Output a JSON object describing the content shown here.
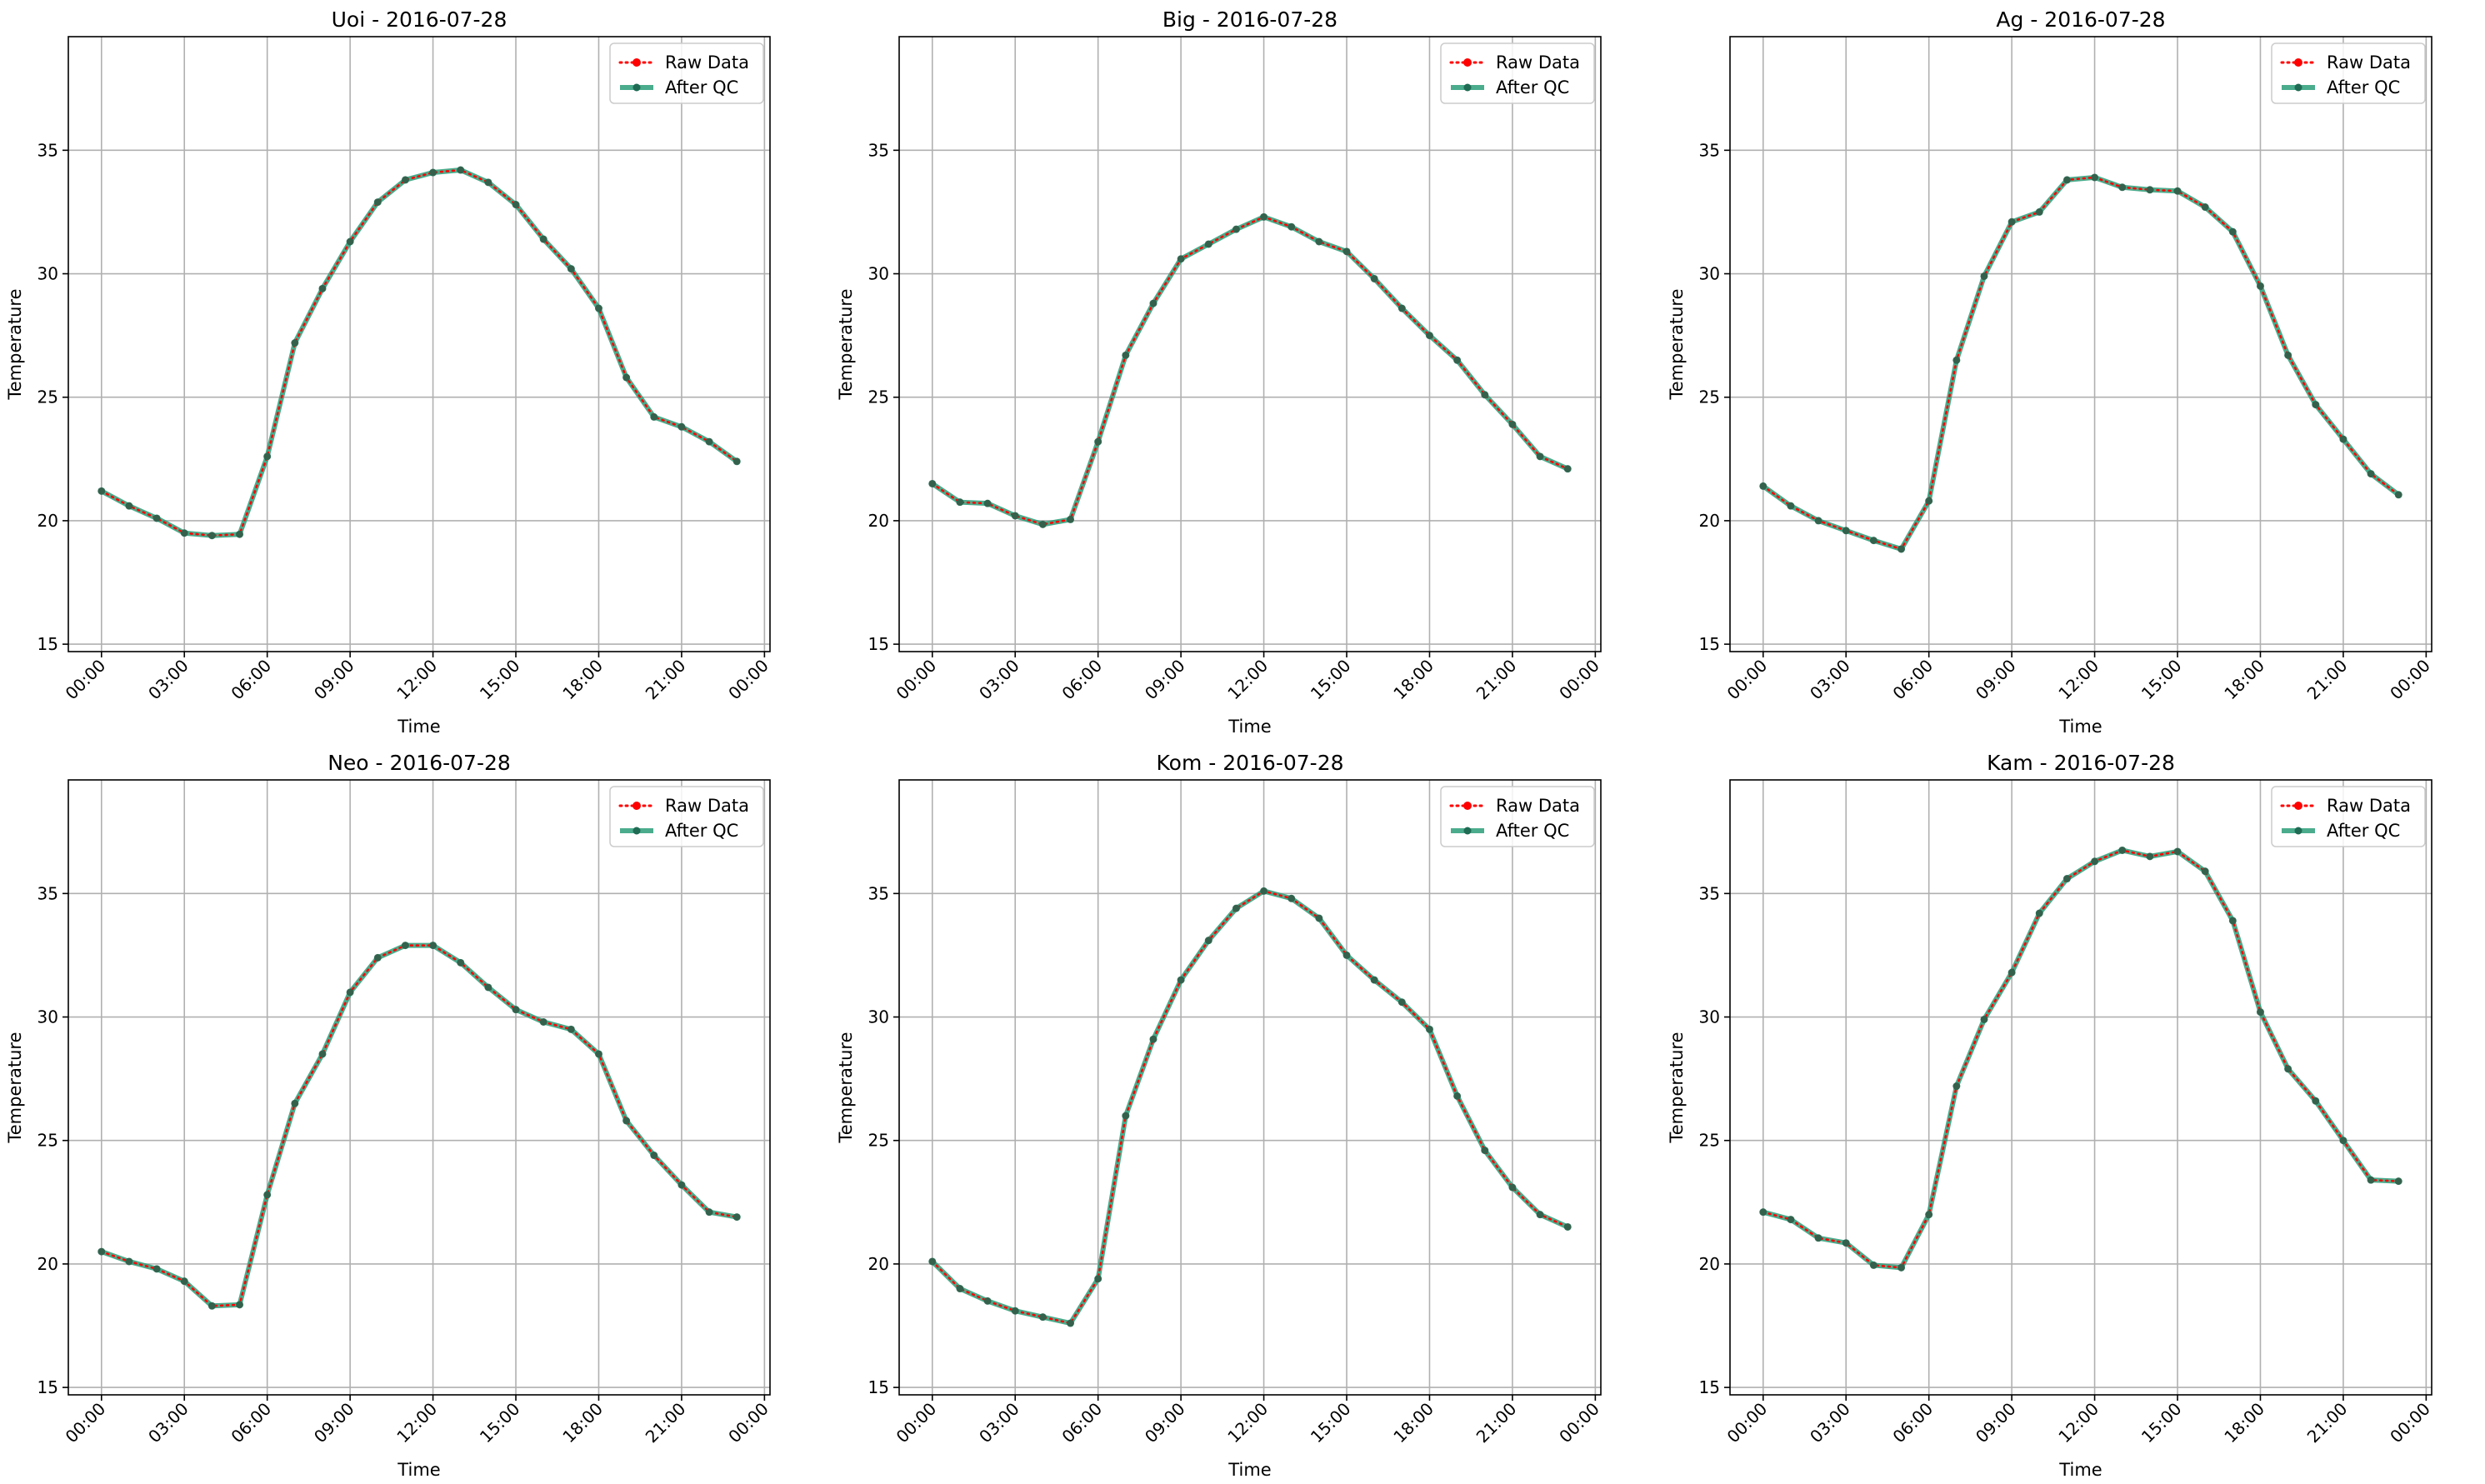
{
  "chart_data": [
    {
      "type": "line",
      "title": "Uoi - 2016-07-28",
      "xlabel": "Time",
      "ylabel": "Temperature",
      "ylim": [
        14.7,
        39.6
      ],
      "yticks": [
        "15",
        "20",
        "25",
        "30",
        "35"
      ],
      "xticks": [
        "00:00",
        "03:00",
        "06:00",
        "09:00",
        "12:00",
        "15:00",
        "18:00",
        "21:00",
        "00:00"
      ],
      "grid": true,
      "legend": "top-right",
      "series": [
        {
          "name": "Raw Data",
          "color": "#ff0000",
          "values": [
            21.2,
            20.6,
            20.1,
            19.5,
            19.4,
            19.45,
            22.6,
            27.2,
            29.4,
            31.3,
            32.9,
            33.8,
            34.1,
            34.2,
            33.7,
            32.8,
            31.4,
            30.2,
            28.6,
            25.8,
            24.2,
            23.8,
            23.2,
            22.4
          ]
        },
        {
          "name": "After QC",
          "color": "#2a9d78",
          "values": [
            21.2,
            20.6,
            20.1,
            19.5,
            19.4,
            19.45,
            22.6,
            27.2,
            29.4,
            31.3,
            32.9,
            33.8,
            34.1,
            34.2,
            33.7,
            32.8,
            31.4,
            30.2,
            28.6,
            25.8,
            24.2,
            23.8,
            23.2,
            22.4
          ]
        }
      ]
    },
    {
      "type": "line",
      "title": "Big - 2016-07-28",
      "xlabel": "Time",
      "ylabel": "Temperature",
      "ylim": [
        14.7,
        39.6
      ],
      "yticks": [
        "15",
        "20",
        "25",
        "30",
        "35"
      ],
      "xticks": [
        "00:00",
        "03:00",
        "06:00",
        "09:00",
        "12:00",
        "15:00",
        "18:00",
        "21:00",
        "00:00"
      ],
      "grid": true,
      "legend": "top-right",
      "series": [
        {
          "name": "Raw Data",
          "color": "#ff0000",
          "values": [
            21.5,
            20.75,
            20.7,
            20.2,
            19.85,
            20.05,
            23.2,
            26.7,
            28.8,
            30.6,
            31.2,
            31.8,
            32.3,
            31.9,
            31.3,
            30.9,
            29.8,
            28.6,
            27.5,
            26.5,
            25.1,
            23.9,
            22.6,
            22.1
          ]
        },
        {
          "name": "After QC",
          "color": "#2a9d78",
          "values": [
            21.5,
            20.75,
            20.7,
            20.2,
            19.85,
            20.05,
            23.2,
            26.7,
            28.8,
            30.6,
            31.2,
            31.8,
            32.3,
            31.9,
            31.3,
            30.9,
            29.8,
            28.6,
            27.5,
            26.5,
            25.1,
            23.9,
            22.6,
            22.1
          ]
        }
      ]
    },
    {
      "type": "line",
      "title": "Ag - 2016-07-28",
      "xlabel": "Time",
      "ylabel": "Temperature",
      "ylim": [
        14.7,
        39.6
      ],
      "yticks": [
        "15",
        "20",
        "25",
        "30",
        "35"
      ],
      "xticks": [
        "00:00",
        "03:00",
        "06:00",
        "09:00",
        "12:00",
        "15:00",
        "18:00",
        "21:00",
        "00:00"
      ],
      "grid": true,
      "legend": "top-right",
      "series": [
        {
          "name": "Raw Data",
          "color": "#ff0000",
          "values": [
            21.4,
            20.6,
            20.0,
            19.6,
            19.2,
            18.85,
            20.8,
            26.5,
            29.9,
            32.1,
            32.5,
            33.8,
            33.9,
            33.5,
            33.4,
            33.35,
            32.7,
            31.7,
            29.5,
            26.7,
            24.7,
            23.3,
            21.9,
            21.05
          ]
        },
        {
          "name": "After QC",
          "color": "#2a9d78",
          "values": [
            21.4,
            20.6,
            20.0,
            19.6,
            19.2,
            18.85,
            20.8,
            26.5,
            29.9,
            32.1,
            32.5,
            33.8,
            33.9,
            33.5,
            33.4,
            33.35,
            32.7,
            31.7,
            29.5,
            26.7,
            24.7,
            23.3,
            21.9,
            21.05
          ]
        }
      ]
    },
    {
      "type": "line",
      "title": "Neo - 2016-07-28",
      "xlabel": "Time",
      "ylabel": "Temperature",
      "ylim": [
        14.7,
        39.6
      ],
      "yticks": [
        "15",
        "20",
        "25",
        "30",
        "35"
      ],
      "xticks": [
        "00:00",
        "03:00",
        "06:00",
        "09:00",
        "12:00",
        "15:00",
        "18:00",
        "21:00",
        "00:00"
      ],
      "grid": true,
      "legend": "top-right",
      "series": [
        {
          "name": "Raw Data",
          "color": "#ff0000",
          "values": [
            20.5,
            20.1,
            19.8,
            19.3,
            18.3,
            18.35,
            22.8,
            26.5,
            28.5,
            31.0,
            32.4,
            32.9,
            32.9,
            32.2,
            31.2,
            30.3,
            29.8,
            29.5,
            28.5,
            25.8,
            24.4,
            23.2,
            22.1,
            21.9
          ]
        },
        {
          "name": "After QC",
          "color": "#2a9d78",
          "values": [
            20.5,
            20.1,
            19.8,
            19.3,
            18.3,
            18.35,
            22.8,
            26.5,
            28.5,
            31.0,
            32.4,
            32.9,
            32.9,
            32.2,
            31.2,
            30.3,
            29.8,
            29.5,
            28.5,
            25.8,
            24.4,
            23.2,
            22.1,
            21.9
          ]
        }
      ]
    },
    {
      "type": "line",
      "title": "Kom - 2016-07-28",
      "xlabel": "Time",
      "ylabel": "Temperature",
      "ylim": [
        14.7,
        39.6
      ],
      "yticks": [
        "15",
        "20",
        "25",
        "30",
        "35"
      ],
      "xticks": [
        "00:00",
        "03:00",
        "06:00",
        "09:00",
        "12:00",
        "15:00",
        "18:00",
        "21:00",
        "00:00"
      ],
      "grid": true,
      "legend": "top-right",
      "series": [
        {
          "name": "Raw Data",
          "color": "#ff0000",
          "values": [
            20.1,
            19.0,
            18.5,
            18.1,
            17.85,
            17.6,
            19.4,
            26.0,
            29.1,
            31.5,
            33.1,
            34.4,
            35.1,
            34.8,
            34.0,
            32.5,
            31.5,
            30.6,
            29.5,
            26.8,
            24.6,
            23.1,
            22.0,
            21.5
          ]
        },
        {
          "name": "After QC",
          "color": "#2a9d78",
          "values": [
            20.1,
            19.0,
            18.5,
            18.1,
            17.85,
            17.6,
            19.4,
            26.0,
            29.1,
            31.5,
            33.1,
            34.4,
            35.1,
            34.8,
            34.0,
            32.5,
            31.5,
            30.6,
            29.5,
            26.8,
            24.6,
            23.1,
            22.0,
            21.5
          ]
        }
      ]
    },
    {
      "type": "line",
      "title": "Kam - 2016-07-28",
      "xlabel": "Time",
      "ylabel": "Temperature",
      "ylim": [
        14.7,
        39.6
      ],
      "yticks": [
        "15",
        "20",
        "25",
        "30",
        "35"
      ],
      "xticks": [
        "00:00",
        "03:00",
        "06:00",
        "09:00",
        "12:00",
        "15:00",
        "18:00",
        "21:00",
        "00:00"
      ],
      "grid": true,
      "legend": "top-right",
      "series": [
        {
          "name": "Raw Data",
          "color": "#ff0000",
          "values": [
            22.1,
            21.8,
            21.05,
            20.85,
            19.95,
            19.85,
            22.0,
            27.2,
            29.9,
            31.8,
            34.2,
            35.6,
            36.3,
            36.75,
            36.5,
            36.7,
            35.9,
            33.9,
            30.2,
            27.9,
            26.6,
            25.0,
            23.4,
            23.35
          ]
        },
        {
          "name": "After QC",
          "color": "#2a9d78",
          "values": [
            22.1,
            21.8,
            21.05,
            20.85,
            19.95,
            19.85,
            22.0,
            27.2,
            29.9,
            31.8,
            34.2,
            35.6,
            36.3,
            36.75,
            36.5,
            36.7,
            35.9,
            33.9,
            30.2,
            27.9,
            26.6,
            25.0,
            23.4,
            23.35
          ]
        }
      ]
    }
  ]
}
